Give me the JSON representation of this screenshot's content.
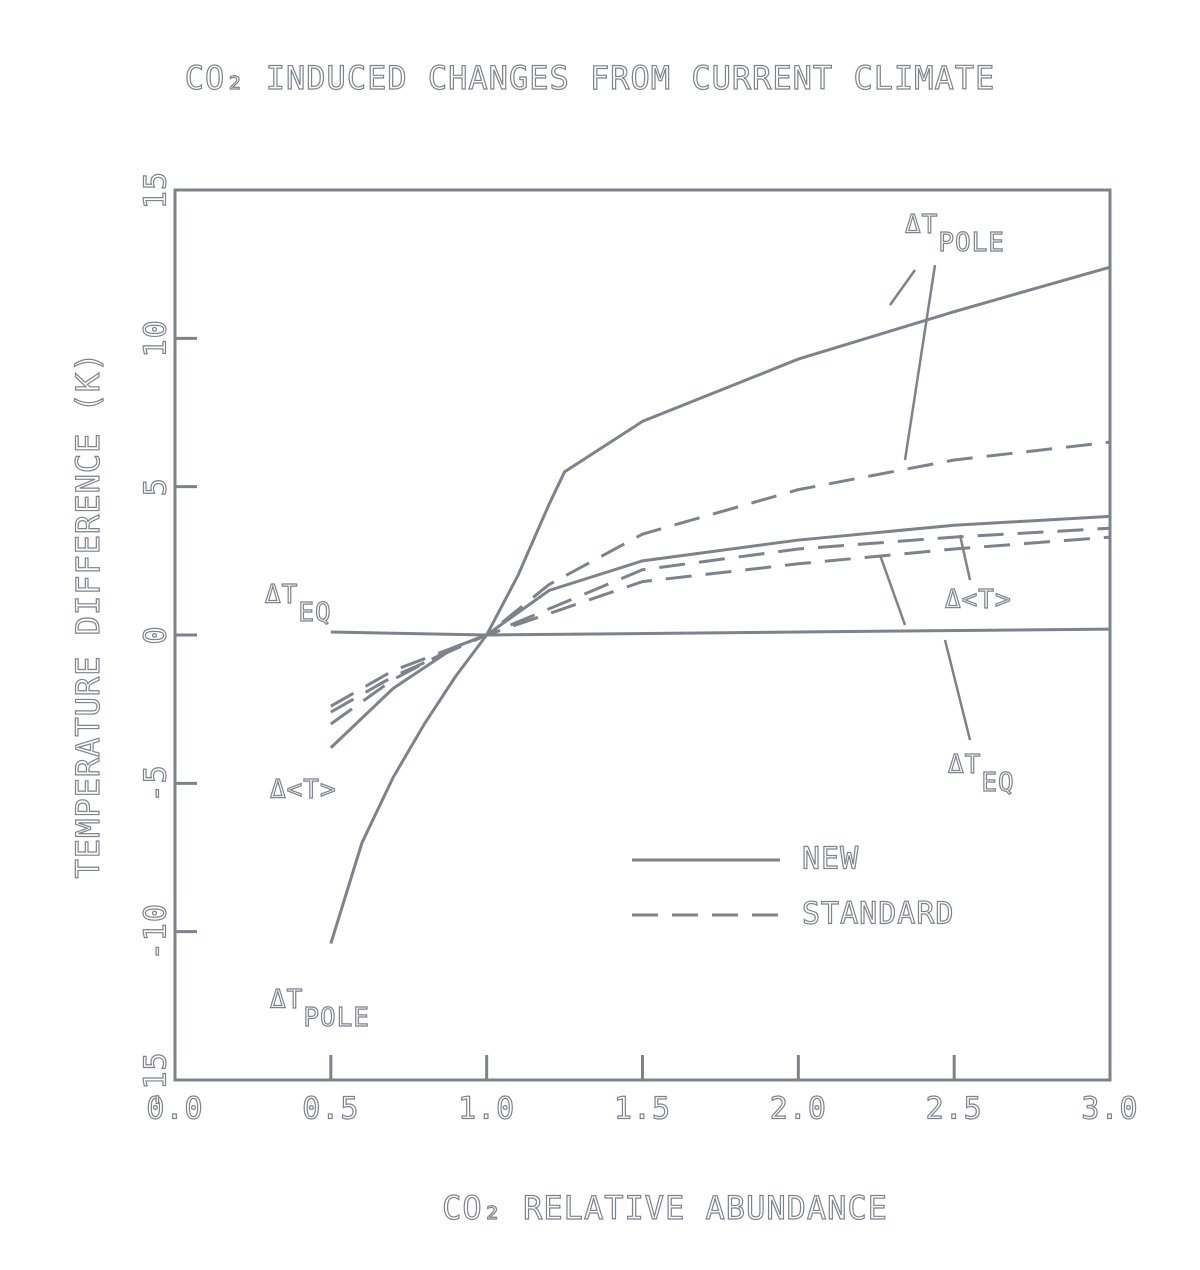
{
  "chart_data": {
    "type": "line",
    "title": "CO₂ INDUCED CHANGES FROM CURRENT CLIMATE",
    "x_label": "CO₂ RELATIVE ABUNDANCE",
    "y_label": "TEMPERATURE DIFFERENCE (K)",
    "xlim": [
      0,
      3
    ],
    "ylim": [
      -15,
      15
    ],
    "xticks": [
      {
        "value": 0,
        "label": "0.0"
      },
      {
        "value": 0.5,
        "label": "0.5"
      },
      {
        "value": 1,
        "label": "1.0"
      },
      {
        "value": 1.5,
        "label": "1.5"
      },
      {
        "value": 2,
        "label": "2.0"
      },
      {
        "value": 2.5,
        "label": "2.5"
      },
      {
        "value": 3,
        "label": "3.0"
      }
    ],
    "yticks": [
      -15,
      -10,
      -5,
      0,
      5,
      10,
      15
    ],
    "color": "#7d828b",
    "legend": [
      {
        "label": "NEW",
        "style": "solid"
      },
      {
        "label": "STANDARD",
        "style": "dashed"
      }
    ],
    "series": [
      {
        "style": "solid",
        "x": [
          0.5,
          0.6,
          0.7,
          0.8,
          0.9,
          1.0,
          1.1,
          1.2,
          1.25,
          1.5,
          2.0,
          2.5,
          3.0
        ],
        "values": [
          -10.4,
          -7.0,
          -4.8,
          -3.0,
          -1.4,
          0,
          2.0,
          4.4,
          5.5,
          7.2,
          9.3,
          10.9,
          12.4
        ]
      },
      {
        "style": "dashed",
        "x": [
          0.5,
          0.7,
          0.9,
          1.0,
          1.2,
          1.5,
          2.0,
          2.5,
          3.0
        ],
        "values": [
          -3.0,
          -1.5,
          -0.4,
          0,
          1.7,
          3.4,
          4.9,
          5.9,
          6.5
        ]
      },
      {
        "style": "solid",
        "x": [
          0.5,
          1.0,
          2.0,
          3.0
        ],
        "values": [
          0.1,
          0,
          0.1,
          0.2
        ]
      },
      {
        "style": "dashed",
        "x": [
          0.5,
          0.7,
          1.0,
          1.5,
          2.0,
          2.5,
          3.0
        ],
        "values": [
          -2.4,
          -1.2,
          0,
          1.8,
          2.4,
          2.9,
          3.3
        ]
      },
      {
        "style": "solid",
        "x": [
          0.5,
          0.7,
          0.9,
          1.0,
          1.2,
          1.5,
          2.0,
          2.5,
          3.0
        ],
        "values": [
          -3.8,
          -1.8,
          -0.4,
          0,
          1.5,
          2.5,
          3.2,
          3.7,
          4.0
        ]
      },
      {
        "style": "dashed",
        "x": [
          0.5,
          0.7,
          1.0,
          1.5,
          2.0,
          2.5,
          3.0
        ],
        "values": [
          -2.6,
          -1.4,
          0,
          2.2,
          2.9,
          3.3,
          3.6
        ]
      }
    ],
    "annotations": [
      {
        "text": "ΔT",
        "subscript": "POLE"
      },
      {
        "text": "ΔT",
        "subscript": "EQ"
      },
      {
        "text": "Δ<T>"
      },
      {
        "text": "ΔT",
        "subscript": "EQ"
      },
      {
        "text": "Δ<T>"
      },
      {
        "text": "ΔT",
        "subscript": "POLE"
      }
    ]
  }
}
